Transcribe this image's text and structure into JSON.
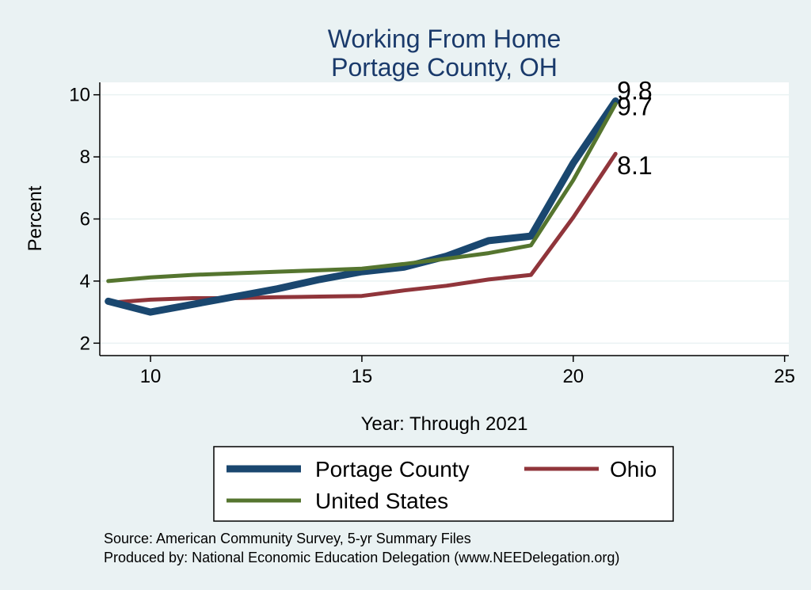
{
  "chart_data": {
    "type": "line",
    "title": [
      "Working From Home",
      "Portage County, OH"
    ],
    "xlabel": "Year: Through 2021",
    "ylabel": "Percent",
    "xlim": [
      8.8,
      25.1
    ],
    "ylim": [
      1.6,
      10.4
    ],
    "xticks": [
      10,
      15,
      20,
      25
    ],
    "yticks": [
      2,
      4,
      6,
      8,
      10
    ],
    "grid": "horizontal",
    "legend_position": "bottom",
    "x": [
      9,
      10,
      11,
      12,
      13,
      14,
      15,
      16,
      17,
      18,
      19,
      20,
      21
    ],
    "series": [
      {
        "name": "Portage County",
        "color": "#1a476f",
        "width": 9,
        "values": [
          3.35,
          3.0,
          3.25,
          3.5,
          3.75,
          4.05,
          4.3,
          4.45,
          4.8,
          5.3,
          5.45,
          7.8,
          9.8
        ],
        "end_label": "9.8"
      },
      {
        "name": "Ohio",
        "color": "#90353b",
        "width": 5,
        "values": [
          3.3,
          3.4,
          3.45,
          3.45,
          3.48,
          3.5,
          3.52,
          3.7,
          3.85,
          4.05,
          4.2,
          6.05,
          8.1
        ],
        "end_label": "8.1"
      },
      {
        "name": "United States",
        "color": "#55752f",
        "width": 5,
        "values": [
          4.0,
          4.12,
          4.2,
          4.25,
          4.3,
          4.35,
          4.4,
          4.55,
          4.72,
          4.9,
          5.15,
          7.25,
          9.7
        ],
        "end_label": "9.7"
      }
    ]
  },
  "notes": {
    "source": "Source: American Community Survey, 5-yr Summary Files",
    "produced_by": "Produced by: National Economic Education Delegation (www.NEEDelegation.org)"
  }
}
